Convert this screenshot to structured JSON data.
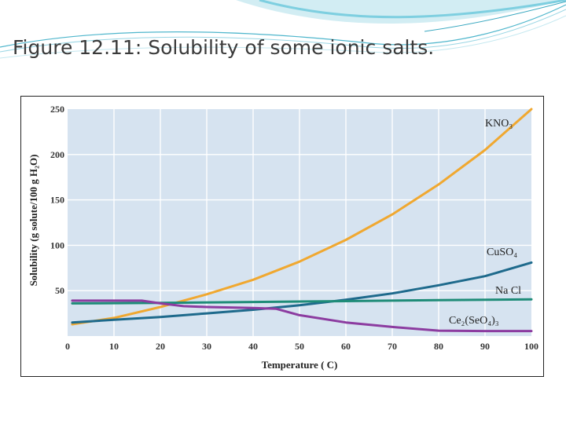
{
  "slide": {
    "title": "Figure 12.11: Solubility of some ionic salts."
  },
  "chart_data": {
    "type": "line",
    "xlabel": "Temperature ( C)",
    "ylabel": "Solubility (g solute/100 g H₂O)",
    "xlim": [
      0,
      100
    ],
    "ylim": [
      0,
      250
    ],
    "xticks": [
      0,
      10,
      20,
      30,
      40,
      50,
      60,
      70,
      80,
      90,
      100
    ],
    "yticks": [
      0,
      50,
      100,
      150,
      200,
      250
    ],
    "grid": true,
    "colors": {
      "plot_bg": "#d6e3f0",
      "grid": "#ffffff"
    },
    "series": [
      {
        "name": "KNO3",
        "label": "KNO₃",
        "color": "#f0a830",
        "x": [
          1,
          10,
          20,
          30,
          40,
          50,
          60,
          70,
          80,
          90,
          100
        ],
        "y": [
          13,
          20,
          32,
          46,
          62,
          82,
          106,
          134,
          167,
          205,
          250
        ]
      },
      {
        "name": "CuSO4",
        "label": "CuSO₄",
        "color": "#1e6a8c",
        "x": [
          1,
          10,
          20,
          30,
          40,
          50,
          60,
          70,
          80,
          90,
          100
        ],
        "y": [
          15,
          18,
          21,
          25,
          29,
          34,
          40,
          47,
          56,
          66,
          81
        ]
      },
      {
        "name": "NaCl",
        "label": "Na Cl",
        "color": "#1f8c78",
        "x": [
          1,
          20,
          40,
          60,
          80,
          100
        ],
        "y": [
          36,
          36.5,
          37.5,
          38.5,
          39.5,
          40.5
        ]
      },
      {
        "name": "Ce2(SeO4)3",
        "label": "Ce₂(SeO₄)₃",
        "color": "#8c3ca0",
        "x": [
          1,
          10,
          16,
          20,
          25,
          30,
          35,
          40,
          45,
          50,
          60,
          70,
          80,
          90,
          100
        ],
        "y": [
          39,
          39,
          39,
          36,
          33,
          32,
          31.5,
          31,
          30,
          23,
          15,
          10,
          6,
          5.5,
          5.5
        ]
      }
    ]
  }
}
